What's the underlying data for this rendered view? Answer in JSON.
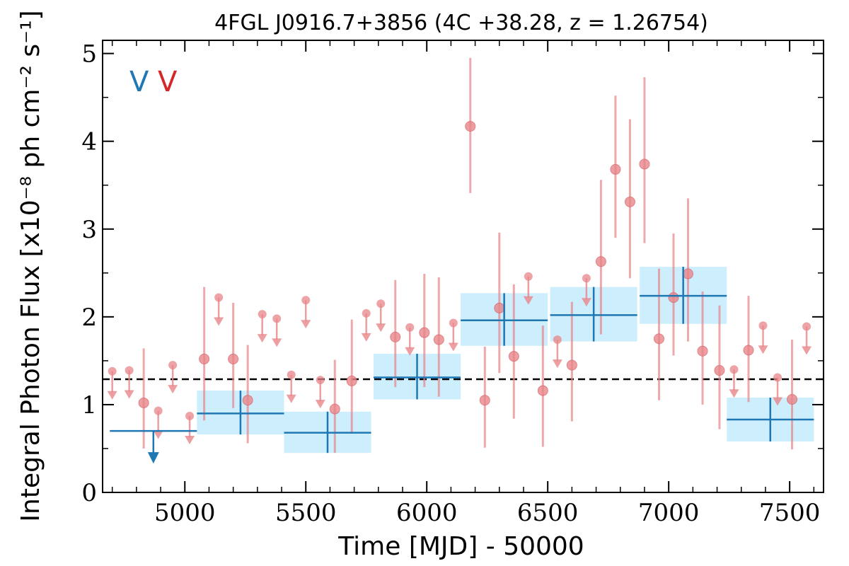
{
  "chart_data": {
    "type": "scatter",
    "title": "4FGL J0916.7+3856 (4C +38.28, z = 1.26754)",
    "xlabel": "Time [MJD] - 50000",
    "ylabel": "Integral Photon Flux [x10⁻⁸ ph cm⁻² s⁻¹]",
    "xlim": [
      4660,
      7640
    ],
    "ylim": [
      0,
      5.15
    ],
    "x_ticks": [
      5000,
      5500,
      6000,
      6500,
      7000,
      7500
    ],
    "y_ticks": [
      0,
      1,
      2,
      3,
      4,
      5
    ],
    "reference_line": {
      "y": 1.29,
      "style": "dashed",
      "color": "#000000"
    },
    "legend": {
      "placement": "top-left",
      "entries": [
        {
          "text": "V",
          "color": "#1f77b4"
        },
        {
          "text": "V",
          "color": "#d62728"
        }
      ]
    },
    "series": [
      {
        "color": "#1f77b4",
        "band_color": "#cdeefc",
        "points": [
          {
            "x": 4870,
            "x_lo": 4690,
            "x_hi": 5050,
            "y": 0.7,
            "y_lo": null,
            "y_hi": null,
            "upper_limit": true
          },
          {
            "x": 5230,
            "x_lo": 5050,
            "x_hi": 5410,
            "y": 0.9,
            "y_lo": 0.66,
            "y_hi": 1.16,
            "upper_limit": false
          },
          {
            "x": 5590,
            "x_lo": 5410,
            "x_hi": 5770,
            "y": 0.68,
            "y_lo": 0.45,
            "y_hi": 0.92,
            "upper_limit": false
          },
          {
            "x": 5960,
            "x_lo": 5780,
            "x_hi": 6140,
            "y": 1.31,
            "y_lo": 1.06,
            "y_hi": 1.58,
            "upper_limit": false
          },
          {
            "x": 6320,
            "x_lo": 6140,
            "x_hi": 6500,
            "y": 1.96,
            "y_lo": 1.67,
            "y_hi": 2.27,
            "upper_limit": false
          },
          {
            "x": 6690,
            "x_lo": 6510,
            "x_hi": 6870,
            "y": 2.02,
            "y_lo": 1.72,
            "y_hi": 2.34,
            "upper_limit": false
          },
          {
            "x": 7060,
            "x_lo": 6880,
            "x_hi": 7240,
            "y": 2.24,
            "y_lo": 1.92,
            "y_hi": 2.57,
            "upper_limit": false
          },
          {
            "x": 7420,
            "x_lo": 7240,
            "x_hi": 7600,
            "y": 0.83,
            "y_lo": 0.58,
            "y_hi": 1.08,
            "upper_limit": false
          }
        ]
      },
      {
        "color": "#e8868a",
        "points": [
          {
            "x": 4700,
            "y": 1.38,
            "upper_limit": true
          },
          {
            "x": 4770,
            "y": 1.39,
            "upper_limit": true
          },
          {
            "x": 4830,
            "y": 1.02,
            "y_lo": 0.5,
            "y_hi": 1.64,
            "upper_limit": false
          },
          {
            "x": 4890,
            "y": 0.93,
            "upper_limit": true
          },
          {
            "x": 4950,
            "y": 1.45,
            "upper_limit": true
          },
          {
            "x": 5020,
            "y": 0.87,
            "upper_limit": true
          },
          {
            "x": 5080,
            "y": 1.52,
            "y_lo": 0.82,
            "y_hi": 2.34,
            "upper_limit": false
          },
          {
            "x": 5140,
            "y": 2.22,
            "upper_limit": true
          },
          {
            "x": 5200,
            "y": 1.52,
            "y_lo": 0.96,
            "y_hi": 2.16,
            "upper_limit": false
          },
          {
            "x": 5260,
            "y": 1.05,
            "y_lo": 0.56,
            "y_hi": 1.68,
            "upper_limit": false
          },
          {
            "x": 5320,
            "y": 2.03,
            "upper_limit": true
          },
          {
            "x": 5380,
            "y": 1.98,
            "upper_limit": true
          },
          {
            "x": 5440,
            "y": 1.34,
            "upper_limit": true
          },
          {
            "x": 5500,
            "y": 2.19,
            "upper_limit": true
          },
          {
            "x": 5560,
            "y": 1.28,
            "upper_limit": true
          },
          {
            "x": 5620,
            "y": 0.95,
            "y_lo": 0.45,
            "y_hi": 1.51,
            "upper_limit": false
          },
          {
            "x": 5690,
            "y": 1.27,
            "y_lo": 0.67,
            "y_hi": 1.97,
            "upper_limit": false
          },
          {
            "x": 5750,
            "y": 2.04,
            "upper_limit": true
          },
          {
            "x": 5810,
            "y": 2.15,
            "upper_limit": true
          },
          {
            "x": 5870,
            "y": 1.77,
            "y_lo": 1.2,
            "y_hi": 2.42,
            "upper_limit": false
          },
          {
            "x": 5930,
            "y": 1.88,
            "upper_limit": true
          },
          {
            "x": 5990,
            "y": 1.82,
            "y_lo": 1.2,
            "y_hi": 2.49,
            "upper_limit": false
          },
          {
            "x": 6050,
            "y": 1.74,
            "y_lo": 1.09,
            "y_hi": 2.45,
            "upper_limit": false
          },
          {
            "x": 6110,
            "y": 1.93,
            "upper_limit": true
          },
          {
            "x": 6180,
            "y": 4.17,
            "y_lo": 3.41,
            "y_hi": 4.95,
            "upper_limit": false
          },
          {
            "x": 6240,
            "y": 1.05,
            "y_lo": 0.51,
            "y_hi": 1.66,
            "upper_limit": false
          },
          {
            "x": 6300,
            "y": 2.1,
            "y_lo": 1.36,
            "y_hi": 2.96,
            "upper_limit": false
          },
          {
            "x": 6360,
            "y": 1.55,
            "y_lo": 0.84,
            "y_hi": 2.37,
            "upper_limit": false
          },
          {
            "x": 6420,
            "y": 2.46,
            "upper_limit": true
          },
          {
            "x": 6480,
            "y": 1.16,
            "y_lo": 0.52,
            "y_hi": 1.9,
            "upper_limit": false
          },
          {
            "x": 6540,
            "y": 1.74,
            "upper_limit": true
          },
          {
            "x": 6600,
            "y": 1.45,
            "y_lo": 0.81,
            "y_hi": 2.17,
            "upper_limit": false
          },
          {
            "x": 6660,
            "y": 2.44,
            "upper_limit": true
          },
          {
            "x": 6720,
            "y": 2.63,
            "y_lo": 1.8,
            "y_hi": 3.56,
            "upper_limit": false
          },
          {
            "x": 6780,
            "y": 3.68,
            "y_lo": 2.9,
            "y_hi": 4.52,
            "upper_limit": false
          },
          {
            "x": 6840,
            "y": 3.31,
            "y_lo": 2.44,
            "y_hi": 4.25,
            "upper_limit": false
          },
          {
            "x": 6900,
            "y": 3.74,
            "y_lo": 2.84,
            "y_hi": 4.73,
            "upper_limit": false
          },
          {
            "x": 6960,
            "y": 1.75,
            "y_lo": 1.05,
            "y_hi": 2.55,
            "upper_limit": false
          },
          {
            "x": 7020,
            "y": 2.22,
            "y_lo": 1.56,
            "y_hi": 2.95,
            "upper_limit": false
          },
          {
            "x": 7080,
            "y": 2.49,
            "y_lo": 1.72,
            "y_hi": 3.35,
            "upper_limit": false
          },
          {
            "x": 7140,
            "y": 1.61,
            "y_lo": 1.0,
            "y_hi": 2.29,
            "upper_limit": false
          },
          {
            "x": 7210,
            "y": 1.39,
            "y_lo": 0.72,
            "y_hi": 2.13,
            "upper_limit": false
          },
          {
            "x": 7270,
            "y": 1.4,
            "upper_limit": true
          },
          {
            "x": 7330,
            "y": 1.62,
            "y_lo": 1.03,
            "y_hi": 2.24,
            "upper_limit": false
          },
          {
            "x": 7390,
            "y": 1.9,
            "upper_limit": true
          },
          {
            "x": 7450,
            "y": 1.31,
            "upper_limit": true
          },
          {
            "x": 7510,
            "y": 1.06,
            "y_lo": 0.49,
            "y_hi": 1.74,
            "upper_limit": false
          },
          {
            "x": 7570,
            "y": 1.89,
            "upper_limit": true
          }
        ]
      }
    ]
  }
}
